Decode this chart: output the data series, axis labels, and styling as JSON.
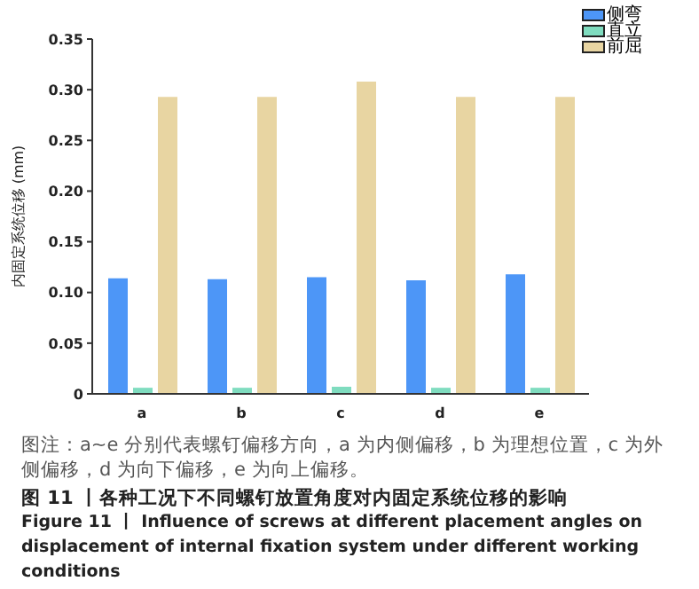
{
  "chart_data": {
    "type": "bar",
    "title": "图 11 丨各种工况下不同螺钉放置角度对内固定系统位移的影响",
    "subtitle": "Figure 11  丨 Influence of screws at different placement angles on displacement of internal fixation system under different working conditions",
    "ylabel": "内固定系统位移 (mm)",
    "categories": [
      "a",
      "b",
      "c",
      "d",
      "e"
    ],
    "series": [
      {
        "name": "侧弯",
        "color": "#4d96f7",
        "values": [
          0.114,
          0.113,
          0.115,
          0.112,
          0.118
        ]
      },
      {
        "name": "直立",
        "color": "#7fdcbf",
        "values": [
          0.006,
          0.006,
          0.007,
          0.006,
          0.006
        ]
      },
      {
        "name": "前屈",
        "color": "#e8d5a2",
        "values": [
          0.293,
          0.293,
          0.308,
          0.293,
          0.293
        ]
      }
    ],
    "ylim": [
      0,
      0.35
    ],
    "yticks": [
      0,
      {
        "value": 0.05,
        "label": "0.05"
      },
      {
        "value": 0.1,
        "label": "0.10"
      },
      {
        "value": 0.15,
        "label": "0.15"
      },
      {
        "value": 0.2,
        "label": "0.20"
      },
      {
        "value": 0.25,
        "label": "0.25"
      },
      {
        "value": 0.3,
        "label": "0.30"
      },
      {
        "value": 0.35,
        "label": "0.35"
      }
    ],
    "legend": "top right",
    "annotations": [
      "图注：a~e 分别代表螺钉偏移方向，a 为内侧偏移，b 为理想位置，c 为外侧偏移，d 为向下偏移，e 为向上偏移。"
    ]
  }
}
